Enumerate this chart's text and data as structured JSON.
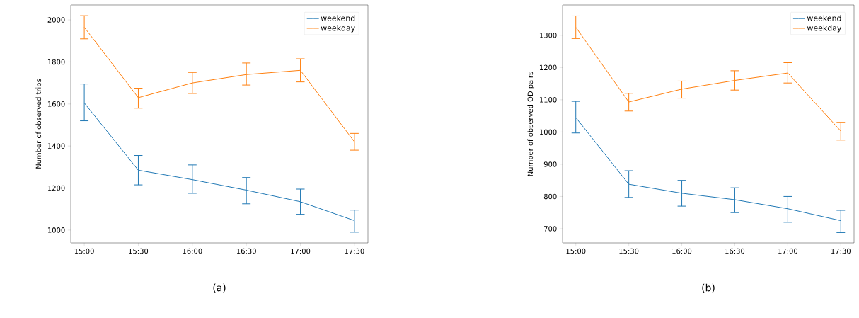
{
  "chart_data": [
    {
      "type": "line",
      "ylabel": "Number of observed trips",
      "categories": [
        "15:00",
        "15:30",
        "16:00",
        "16:30",
        "17:00",
        "17:30"
      ],
      "ylim": [
        939,
        2071
      ],
      "yticks": [
        1000,
        1200,
        1400,
        1600,
        1800,
        2000
      ],
      "legend": "top right",
      "annotations": [
        "(a)"
      ],
      "series": [
        {
          "name": "weekend",
          "color": "#1f77b4",
          "values": [
            1605,
            1285,
            1240,
            1190,
            1135,
            1045
          ],
          "errors": [
            [
              1520,
              1695
            ],
            [
              1215,
              1355
            ],
            [
              1175,
              1310
            ],
            [
              1125,
              1250
            ],
            [
              1075,
              1195
            ],
            [
              990,
              1095
            ]
          ]
        },
        {
          "name": "weekday",
          "color": "#ff7f0e",
          "values": [
            1965,
            1630,
            1700,
            1740,
            1760,
            1420
          ],
          "errors": [
            [
              1910,
              2020
            ],
            [
              1580,
              1675
            ],
            [
              1650,
              1750
            ],
            [
              1690,
              1795
            ],
            [
              1705,
              1815
            ],
            [
              1380,
              1460
            ]
          ]
        }
      ]
    },
    {
      "type": "line",
      "ylabel": "Number of observed OD pairs",
      "categories": [
        "15:00",
        "15:30",
        "16:00",
        "16:30",
        "17:00",
        "17:30"
      ],
      "ylim": [
        656,
        1394
      ],
      "yticks": [
        700,
        800,
        900,
        1000,
        1100,
        1200,
        1300
      ],
      "legend": "top right",
      "annotations": [
        "(b)"
      ],
      "series": [
        {
          "name": "weekend",
          "color": "#1f77b4",
          "values": [
            1045,
            838,
            810,
            790,
            762,
            725
          ],
          "errors": [
            [
              997,
              1095
            ],
            [
              797,
              880
            ],
            [
              770,
              850
            ],
            [
              750,
              827
            ],
            [
              720,
              800
            ],
            [
              688,
              757
            ]
          ]
        },
        {
          "name": "weekday",
          "color": "#ff7f0e",
          "values": [
            1325,
            1093,
            1133,
            1160,
            1183,
            1003
          ],
          "errors": [
            [
              1290,
              1360
            ],
            [
              1065,
              1120
            ],
            [
              1105,
              1158
            ],
            [
              1130,
              1190
            ],
            [
              1152,
              1215
            ],
            [
              975,
              1030
            ]
          ]
        }
      ]
    }
  ]
}
